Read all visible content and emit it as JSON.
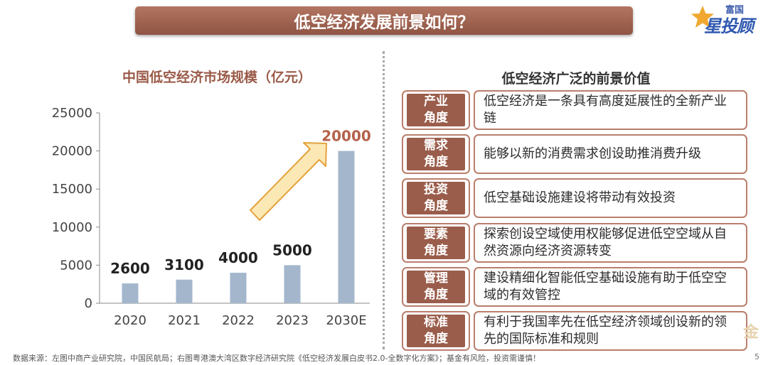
{
  "header": {
    "title": "低空经济发展前景如何？"
  },
  "logo": {
    "company": "富国",
    "brand": "星投顾"
  },
  "chart_data": {
    "type": "bar",
    "title": "中国低空经济市场规模（亿元）",
    "categories": [
      "2020",
      "2021",
      "2022",
      "2023",
      "2030E"
    ],
    "values": [
      2600,
      3100,
      4000,
      5000,
      20000
    ],
    "y_ticks": [
      "0",
      "5000",
      "10000",
      "15000",
      "20000",
      "25000"
    ],
    "ylim": [
      0,
      25000
    ],
    "data_labels": [
      "2600",
      "3100",
      "4000",
      "5000",
      "20000"
    ],
    "bar_color": "#a3b6cc",
    "highlight_label_color": "#b5614b",
    "arrow_color": "#fbe8b5",
    "grid": false
  },
  "right_panel": {
    "title": "低空经济广泛的前景价值",
    "rows": [
      {
        "tag_line1": "产业",
        "tag_line2": "角度",
        "text": "低空经济是一条具有高度延展性的全新产业链"
      },
      {
        "tag_line1": "需求",
        "tag_line2": "角度",
        "text": "能够以新的消费需求创设助推消费升级"
      },
      {
        "tag_line1": "投资",
        "tag_line2": "角度",
        "text": "低空基础设施建设将带动有效投资"
      },
      {
        "tag_line1": "要素",
        "tag_line2": "角度",
        "text": "探索创设空域使用权能够促进低空空域从自然资源向经济资源转变"
      },
      {
        "tag_line1": "管理",
        "tag_line2": "角度",
        "text": "建设精细化智能低空基础设施有助于低空空域的有效管控"
      },
      {
        "tag_line1": "标准",
        "tag_line2": "角度",
        "text": "有利于我国率先在低空经济领域创设新的领先的国际标准和规则"
      }
    ]
  },
  "footer": {
    "source": "数据来源：左图中商产业研究院，中国民航局；右图粤港澳大湾区数字经济研究院《低空经济发展白皮书2.0-全数字化方案》；基金有风险，投资需谨慎！",
    "page_number": "5"
  },
  "watermark": "金"
}
